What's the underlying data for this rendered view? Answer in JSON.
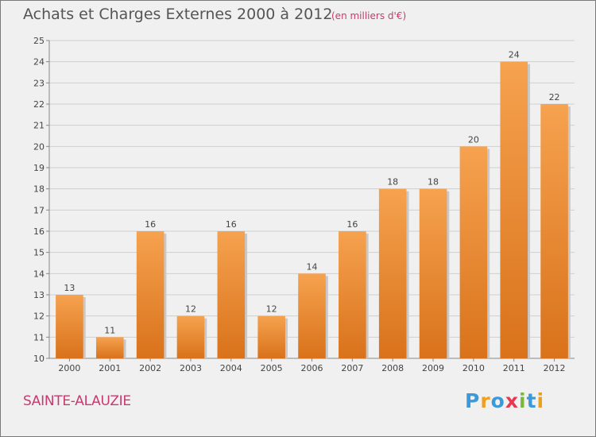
{
  "header": {
    "title": "Achats et Charges Externes 2000 à 2012",
    "subtitle": "(en milliers d'€)"
  },
  "footer": {
    "commune": "SAINTE-ALAUZIE",
    "logo": {
      "text": "Proxiti",
      "letters": [
        {
          "ch": "P",
          "color": "#3a9ad9"
        },
        {
          "ch": "r",
          "color": "#f0a020"
        },
        {
          "ch": "o",
          "color": "#3a9ad9"
        },
        {
          "ch": "x",
          "color": "#e8384f"
        },
        {
          "ch": "i",
          "color": "#7ab83c"
        },
        {
          "ch": "t",
          "color": "#3a9ad9"
        },
        {
          "ch": "i",
          "color": "#e8a020"
        }
      ]
    }
  },
  "chart_data": {
    "type": "bar",
    "categories": [
      "2000",
      "2001",
      "2002",
      "2003",
      "2004",
      "2005",
      "2006",
      "2007",
      "2008",
      "2009",
      "2010",
      "2011",
      "2012"
    ],
    "values": [
      13,
      11,
      16,
      12,
      16,
      12,
      14,
      16,
      18,
      18,
      20,
      24,
      22
    ],
    "data_labels": [
      "13",
      "11",
      "16",
      "12",
      "16",
      "12",
      "14",
      "16",
      "18",
      "18",
      "20",
      "24",
      "22"
    ],
    "yticks": [
      "10",
      "11",
      "12",
      "13",
      "14",
      "15",
      "16",
      "17",
      "18",
      "19",
      "20",
      "21",
      "22",
      "23",
      "24",
      "25"
    ],
    "ylim": [
      10,
      25
    ],
    "grid": true,
    "colors": {
      "bar_light": "#f6a24f",
      "bar_dark": "#d9721b",
      "grid": "#cfcfcf",
      "axis_text": "#444444"
    }
  }
}
